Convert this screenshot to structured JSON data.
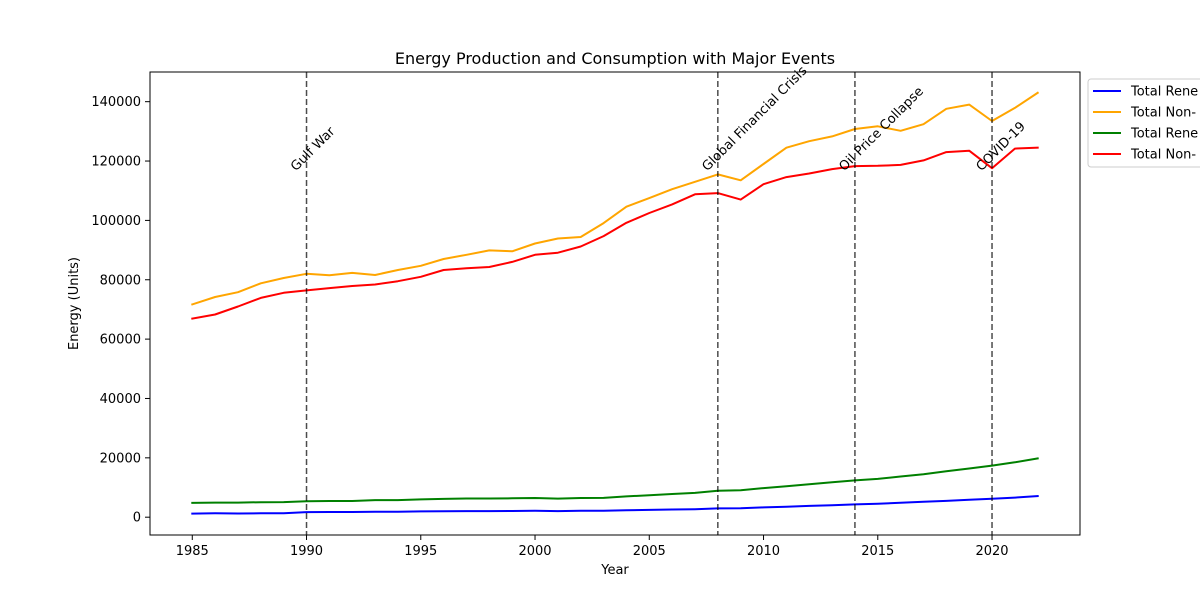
{
  "chart_data": {
    "type": "line",
    "title": "Energy Production and Consumption with Major Events",
    "xlabel": "Year",
    "ylabel": "Energy (Units)",
    "xlim": [
      1983.15,
      2023.85
    ],
    "ylim": [
      -6000,
      150000
    ],
    "xticks": [
      1985,
      1990,
      1995,
      2000,
      2005,
      2010,
      2015,
      2020
    ],
    "yticks": [
      0,
      20000,
      40000,
      60000,
      80000,
      100000,
      120000,
      140000
    ],
    "grid": false,
    "legend_position": "outside-upper-right",
    "x": [
      1985,
      1986,
      1987,
      1988,
      1989,
      1990,
      1991,
      1992,
      1993,
      1994,
      1995,
      1996,
      1997,
      1998,
      1999,
      2000,
      2001,
      2002,
      2003,
      2004,
      2005,
      2006,
      2007,
      2008,
      2009,
      2010,
      2011,
      2012,
      2013,
      2014,
      2015,
      2016,
      2017,
      2018,
      2019,
      2020,
      2021,
      2022
    ],
    "series": [
      {
        "name": "Total Rene",
        "color": "#0000ff",
        "values": [
          1200,
          1300,
          1250,
          1300,
          1350,
          1700,
          1750,
          1750,
          1850,
          1850,
          1950,
          2000,
          2050,
          2050,
          2100,
          2150,
          2050,
          2150,
          2200,
          2350,
          2450,
          2600,
          2700,
          2950,
          3000,
          3300,
          3500,
          3800,
          4050,
          4300,
          4500,
          4850,
          5200,
          5500,
          5900,
          6200,
          6600,
          7100
        ]
      },
      {
        "name": "Total Non-",
        "color": "#ffa500",
        "values": [
          71700,
          74200,
          75800,
          78800,
          80600,
          82000,
          81500,
          82300,
          81600,
          83300,
          84700,
          87000,
          88400,
          89900,
          89600,
          92200,
          93900,
          94400,
          99100,
          104600,
          107500,
          110500,
          113000,
          115500,
          113500,
          119000,
          124500,
          126700,
          128300,
          130800,
          131700,
          130200,
          132400,
          137600,
          139000,
          133500,
          137900,
          143000
        ]
      },
      {
        "name": "Total Rene",
        "color": "#008000",
        "values": [
          4800,
          4900,
          4900,
          5050,
          5100,
          5350,
          5450,
          5450,
          5750,
          5750,
          6000,
          6150,
          6300,
          6300,
          6350,
          6450,
          6250,
          6450,
          6500,
          7000,
          7400,
          7800,
          8200,
          8900,
          9100,
          9800,
          10400,
          11100,
          11800,
          12400,
          12900,
          13700,
          14500,
          15500,
          16400,
          17400,
          18500,
          19800
        ]
      },
      {
        "name": "Total Non-",
        "color": "#ff0000",
        "values": [
          66900,
          68300,
          71000,
          73900,
          75600,
          76400,
          77200,
          77900,
          78400,
          79500,
          81000,
          83300,
          83900,
          84300,
          86000,
          88400,
          89100,
          91200,
          94700,
          99200,
          102500,
          105400,
          108800,
          109200,
          107000,
          112200,
          114600,
          115800,
          117300,
          118300,
          118400,
          118700,
          120200,
          123000,
          123500,
          117600,
          124200,
          124500
        ]
      }
    ],
    "events": [
      {
        "year": 1990,
        "label": "Gulf War"
      },
      {
        "year": 2008,
        "label": "Global Financial Crisis"
      },
      {
        "year": 2014,
        "label": "Oil Price Collapse"
      },
      {
        "year": 2020,
        "label": "COVID-19"
      }
    ]
  }
}
